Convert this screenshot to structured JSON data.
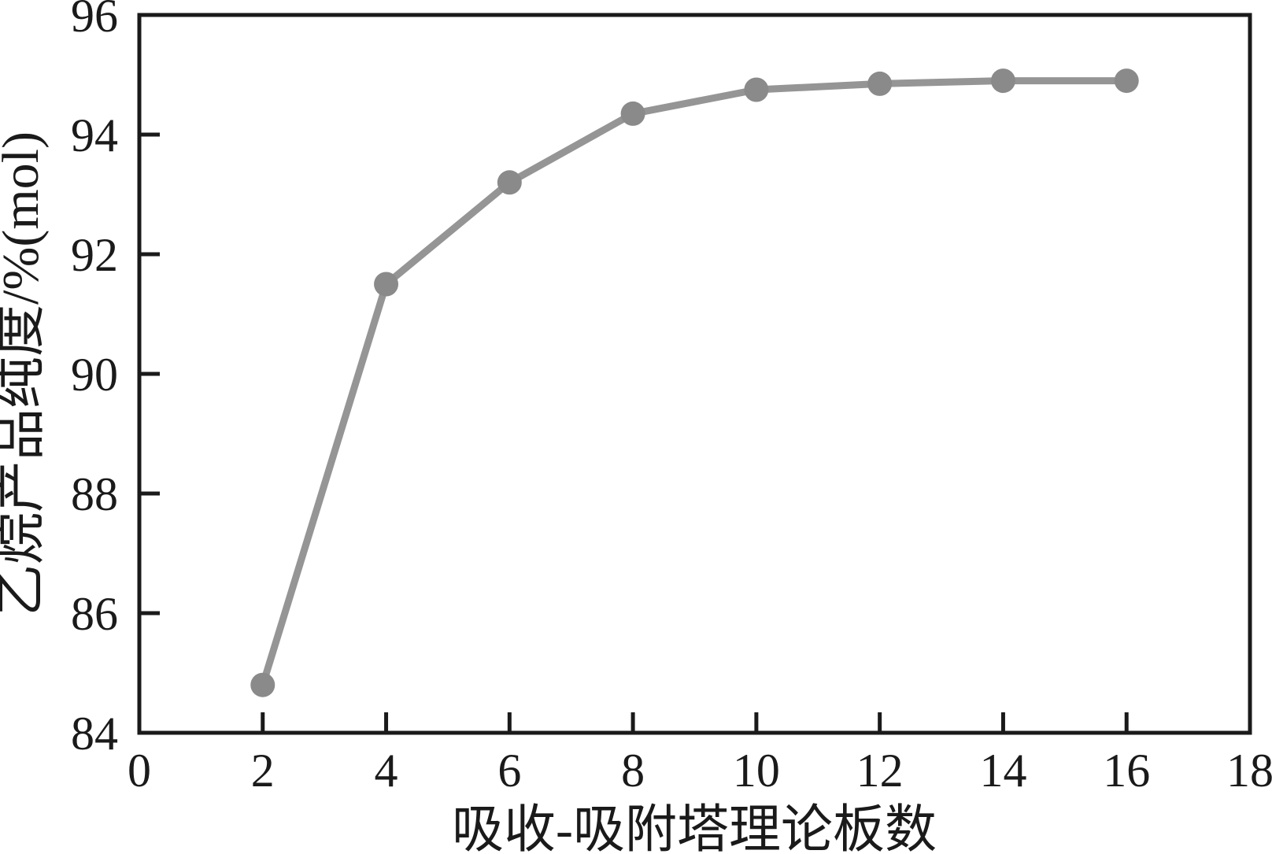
{
  "figure": {
    "background": "#ffffff"
  },
  "chart_data": {
    "type": "line",
    "title": "",
    "xlabel": "吸收-吸附塔理论板数",
    "ylabel": "乙烷产品纯度/%(mol)",
    "x": [
      2,
      4,
      6,
      8,
      10,
      12,
      14,
      16
    ],
    "y": [
      84.8,
      91.5,
      93.2,
      94.35,
      94.75,
      94.85,
      94.9,
      94.9
    ],
    "xlim": [
      0,
      18
    ],
    "ylim": [
      84,
      96
    ],
    "xticks": [
      0,
      2,
      4,
      6,
      8,
      10,
      12,
      14,
      16,
      18
    ],
    "yticks": [
      84,
      86,
      88,
      90,
      92,
      94,
      96
    ],
    "grid": false,
    "legend_position": "none",
    "series_name": "ethane-product-purity",
    "line_color": "#959595",
    "marker_color": "#8a8a8a",
    "axis_color": "#1a1a1a",
    "text_color": "#1a1a1a"
  }
}
